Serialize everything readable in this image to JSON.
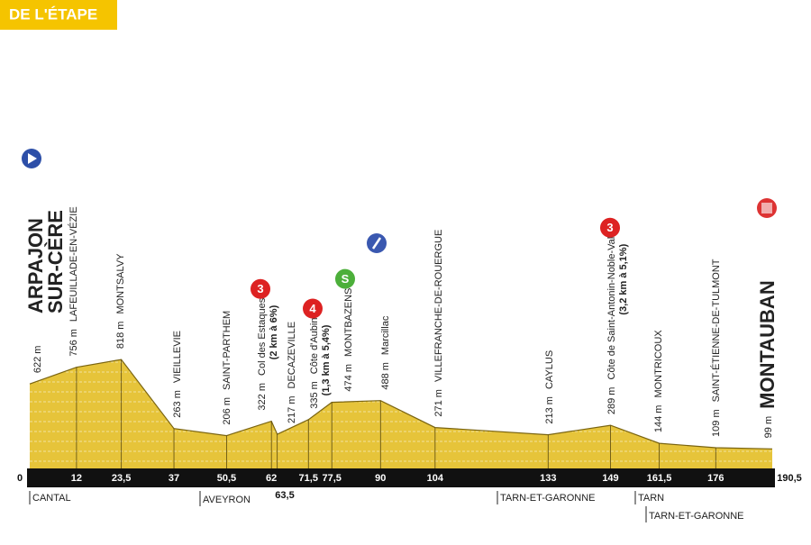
{
  "chart_data": {
    "type": "area",
    "title": "DE L'ÉTAPE",
    "start_name": [
      "ARPAJON",
      "SUR-CÈRE"
    ],
    "x": [
      0,
      12,
      23.5,
      37,
      50.5,
      62,
      63.5,
      71.5,
      77.5,
      90,
      104,
      133,
      149,
      161.5,
      176,
      190.5
    ],
    "values": [
      622,
      756,
      818,
      263,
      206,
      322,
      217,
      335,
      474,
      488,
      271,
      213,
      289,
      144,
      109,
      99
    ],
    "value_labels": [
      "622 m",
      "756 m",
      "818 m",
      "263 m",
      "206 m",
      "322 m",
      "217 m",
      "335 m",
      "474 m",
      "488 m",
      "271 m",
      "213 m",
      "289 m",
      "144 m",
      "109 m",
      "99 m"
    ],
    "point_names": [
      null,
      "LAFEUILLADE-EN-VÉZIE",
      "MONTSALVY",
      "VIEILLEVIE",
      "SAINT-PARTHEM",
      "Col des Estaques",
      "DECAZEVILLE",
      "Côte d'Aubin",
      "MONTBAZENS",
      "Marcillac",
      "VILLEFRANCHE-DE-ROUERGUE",
      "CAYLUS",
      "Côte de Saint-Antonin-Noble-Val",
      "MONTRICOUX",
      "SAINT-ÉTIENNE-DE-TULMONT",
      "MONTAUBAN"
    ],
    "climb_notes": [
      null,
      null,
      null,
      null,
      null,
      "(2 km à 6%)",
      null,
      "(1,3 km à 5,4%)",
      null,
      null,
      null,
      null,
      "(3,2 km à 5,1%)",
      null,
      null,
      null
    ],
    "climb_categories": [
      null,
      null,
      null,
      null,
      null,
      "3",
      null,
      "4",
      "S",
      null,
      null,
      null,
      "3",
      null,
      null,
      null
    ],
    "xlim": [
      0,
      190.5
    ],
    "xticks": [
      0,
      12,
      {
        "value": 23.5,
        "label": "23,5"
      },
      37,
      {
        "value": 50.5,
        "label": "50,5"
      },
      62,
      {
        "value": 63.5,
        "label": "63,5"
      },
      {
        "value": 71.5,
        "label": "71,5"
      },
      {
        "value": 77.5,
        "label": "77,5"
      },
      90,
      104,
      133,
      149,
      {
        "value": 161.5,
        "label": "161,5"
      },
      176,
      {
        "value": 190.5,
        "label": "190,5"
      }
    ],
    "ylim": [
      0,
      1000
    ],
    "color": "#e6c43a",
    "regions": [
      "CANTAL",
      "AVEYRON",
      "TARN-ET-GARONNE",
      "TARN",
      "TARN-ET-GARONNE"
    ]
  }
}
